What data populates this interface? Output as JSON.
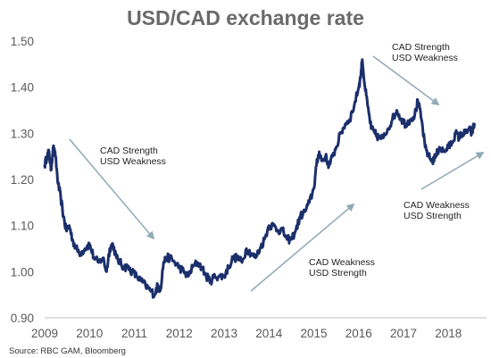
{
  "chart_data": {
    "type": "line",
    "title": "USD/CAD exchange rate",
    "xlabel": "",
    "ylabel": "",
    "xlim": [
      2009.0,
      2018.85
    ],
    "ylim": [
      0.9,
      1.5
    ],
    "grid": false,
    "legend": "none",
    "colors": {
      "line": "#1b2f6b",
      "arrow": "#8faab5",
      "axis": "#bfbfbf",
      "title": "#6a6a6a",
      "ticks": "#595959"
    },
    "y_ticks": [
      "1.50",
      "1.40",
      "1.30",
      "1.20",
      "1.10",
      "1.00",
      "0.90"
    ],
    "y_tick_values": [
      1.5,
      1.4,
      1.3,
      1.2,
      1.1,
      1.0,
      0.9
    ],
    "x_ticks": [
      "2009",
      "2010",
      "2011",
      "2012",
      "2013",
      "2014",
      "2015",
      "2016",
      "2017",
      "2018"
    ],
    "x_tick_values": [
      2009,
      2010,
      2011,
      2012,
      2013,
      2014,
      2015,
      2016,
      2017,
      2018
    ],
    "series": [
      {
        "x": [
          2009.0,
          2009.05,
          2009.1,
          2009.14,
          2009.19,
          2009.24,
          2009.3,
          2009.36,
          2009.42,
          2009.48,
          2009.55,
          2009.62,
          2009.7,
          2009.8,
          2009.9,
          2010.0,
          2010.1,
          2010.2,
          2010.3,
          2010.38,
          2010.45,
          2010.52,
          2010.6,
          2010.68,
          2010.76,
          2010.85,
          2010.95,
          2011.05,
          2011.15,
          2011.25,
          2011.35,
          2011.45,
          2011.52,
          2011.58,
          2011.65,
          2011.72,
          2011.8,
          2011.9,
          2012.0,
          2012.1,
          2012.2,
          2012.3,
          2012.4,
          2012.5,
          2012.6,
          2012.7,
          2012.8,
          2012.9,
          2013.0,
          2013.1,
          2013.2,
          2013.3,
          2013.4,
          2013.5,
          2013.6,
          2013.7,
          2013.8,
          2013.9,
          2014.0,
          2014.1,
          2014.2,
          2014.3,
          2014.4,
          2014.5,
          2014.6,
          2014.7,
          2014.8,
          2014.9,
          2015.0,
          2015.06,
          2015.12,
          2015.18,
          2015.26,
          2015.34,
          2015.42,
          2015.5,
          2015.6,
          2015.7,
          2015.8,
          2015.9,
          2016.0,
          2016.04,
          2016.08,
          2016.14,
          2016.2,
          2016.28,
          2016.36,
          2016.45,
          2016.55,
          2016.65,
          2016.75,
          2016.85,
          2016.95,
          2017.05,
          2017.15,
          2017.25,
          2017.32,
          2017.4,
          2017.48,
          2017.56,
          2017.64,
          2017.72,
          2017.8,
          2017.9,
          2018.0,
          2018.08,
          2018.16,
          2018.24,
          2018.3,
          2018.38,
          2018.46,
          2018.52,
          2018.58
        ],
        "y": [
          1.23,
          1.25,
          1.26,
          1.22,
          1.27,
          1.25,
          1.19,
          1.16,
          1.12,
          1.09,
          1.1,
          1.07,
          1.05,
          1.04,
          1.05,
          1.06,
          1.03,
          1.02,
          1.03,
          1.0,
          1.05,
          1.06,
          1.03,
          1.02,
          1.01,
          1.01,
          1.0,
          0.99,
          0.98,
          0.97,
          0.96,
          0.95,
          0.97,
          0.96,
          1.02,
          1.03,
          1.03,
          1.02,
          1.01,
          1.0,
          0.99,
          1.01,
          1.02,
          1.01,
          0.99,
          0.98,
          0.99,
          0.99,
          0.99,
          1.01,
          1.03,
          1.03,
          1.02,
          1.05,
          1.04,
          1.03,
          1.05,
          1.07,
          1.1,
          1.1,
          1.09,
          1.09,
          1.07,
          1.07,
          1.09,
          1.12,
          1.13,
          1.15,
          1.18,
          1.23,
          1.26,
          1.24,
          1.25,
          1.23,
          1.25,
          1.27,
          1.3,
          1.32,
          1.33,
          1.36,
          1.4,
          1.42,
          1.46,
          1.4,
          1.36,
          1.31,
          1.3,
          1.29,
          1.29,
          1.31,
          1.33,
          1.35,
          1.33,
          1.32,
          1.33,
          1.34,
          1.37,
          1.33,
          1.27,
          1.25,
          1.24,
          1.25,
          1.27,
          1.26,
          1.27,
          1.28,
          1.3,
          1.29,
          1.3,
          1.3,
          1.31,
          1.3,
          1.32
        ]
      }
    ],
    "annotations": [
      {
        "lines": [
          "CAD Strength",
          "USD Weakness"
        ]
      },
      {
        "lines": [
          "CAD Strength",
          "USD Weakness"
        ]
      },
      {
        "lines": [
          "CAD Weakness",
          "USD Strength"
        ]
      },
      {
        "lines": [
          "CAD Weakness",
          "USD Strength"
        ]
      }
    ]
  },
  "source": "Source: RBC GAM, Bloomberg"
}
